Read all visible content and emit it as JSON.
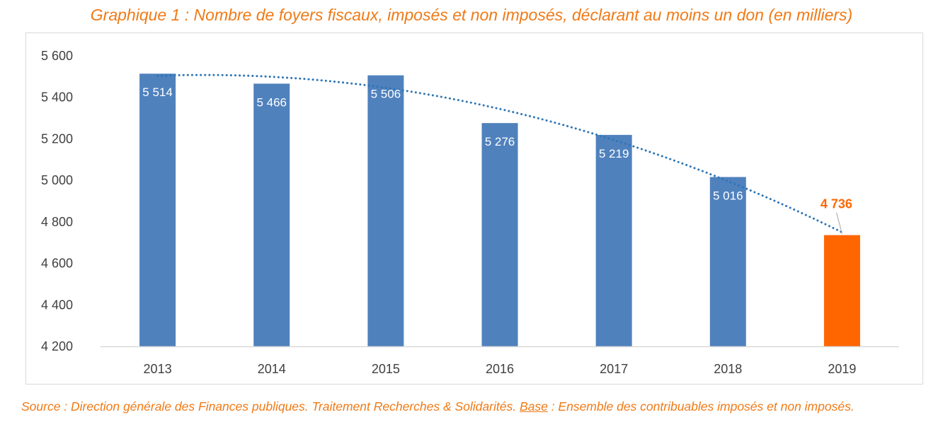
{
  "colors": {
    "accent": "#f07a16",
    "bar": "#4f81bd",
    "highlight_bar": "#ff6600",
    "trend": "#2e75b6"
  },
  "chart_data": {
    "type": "bar",
    "title": "Graphique 1 : Nombre de foyers fiscaux, imposés et non imposés, déclarant au moins un don (en milliers)",
    "categories": [
      "2013",
      "2014",
      "2015",
      "2016",
      "2017",
      "2018",
      "2019"
    ],
    "values": [
      5514,
      5466,
      5506,
      5276,
      5219,
      5016,
      4736
    ],
    "value_labels": [
      "5 514",
      "5 466",
      "5 506",
      "5 276",
      "5 219",
      "5 016",
      "4 736"
    ],
    "highlight_index": 6,
    "trendline": "polynomial (dotted)",
    "ylim": [
      4200,
      5600
    ],
    "yticks": [
      4200,
      4400,
      4600,
      4800,
      5000,
      5200,
      5400,
      5600
    ],
    "ytick_labels": [
      "4 200",
      "4 400",
      "4 600",
      "4 800",
      "5 000",
      "5 200",
      "5 400",
      "5 600"
    ],
    "xlabel": "",
    "ylabel": "",
    "grid": false,
    "legend": "none"
  },
  "source": {
    "prefix": "Source : Direction générale des Finances publiques. Traitement Recherches & Solidarités. ",
    "base_label": "Base",
    "suffix": " : Ensemble des contribuables imposés et non imposés."
  }
}
